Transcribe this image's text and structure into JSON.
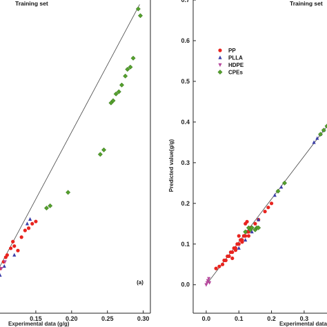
{
  "chart_data": [
    {
      "type": "scatter",
      "title": "Training set",
      "xlabel": "Experimental data (g/g)",
      "ylabel": "",
      "annotation": "(a)",
      "xlim": [
        0.1,
        0.31
      ],
      "ylim": [
        0.0,
        0.7
      ],
      "x_ticks": [
        "0.15",
        "0.20",
        "0.25",
        "0.30"
      ],
      "x_tick_values": [
        0.15,
        0.2,
        0.25,
        0.3
      ],
      "fit_line": [
        [
          0.095,
          0.09
        ],
        [
          0.295,
          0.69
        ]
      ],
      "series": [
        {
          "key": "pp",
          "color": "#e8241f",
          "marker": "circle",
          "x": [
            0.1,
            0.105,
            0.11,
            0.115,
            0.12,
            0.125,
            0.13,
            0.135,
            0.14,
            0.145,
            0.15,
            0.108,
            0.118
          ],
          "y": [
            0.1,
            0.115,
            0.13,
            0.145,
            0.15,
            0.14,
            0.17,
            0.185,
            0.19,
            0.2,
            0.205,
            0.125,
            0.16
          ]
        },
        {
          "key": "plla",
          "color": "#3b3ea8",
          "marker": "triangle-up",
          "x": [
            0.1,
            0.12,
            0.142,
            0.106,
            0.138
          ],
          "y": [
            0.085,
            0.13,
            0.21,
            0.105,
            0.2
          ]
        },
        {
          "key": "hdpe",
          "color": "#b5479c",
          "marker": "triangle-down",
          "x": [
            0.102,
            0.107
          ],
          "y": [
            0.1,
            0.115
          ]
        },
        {
          "key": "cpes",
          "color": "#55a02d",
          "marker": "diamond",
          "x": [
            0.165,
            0.17,
            0.195,
            0.24,
            0.245,
            0.255,
            0.258,
            0.262,
            0.266,
            0.27,
            0.275,
            0.278,
            0.282,
            0.286,
            0.293,
            0.296
          ],
          "y": [
            0.235,
            0.24,
            0.27,
            0.355,
            0.365,
            0.47,
            0.475,
            0.49,
            0.495,
            0.51,
            0.53,
            0.545,
            0.55,
            0.57,
            0.68,
            0.665
          ]
        }
      ]
    },
    {
      "type": "scatter",
      "title": "Training set",
      "xlabel": "Experimental data (g/g)",
      "ylabel": "Predicted value(g/g)",
      "xlim": [
        -0.04,
        0.37
      ],
      "ylim": [
        -0.07,
        0.7
      ],
      "x_ticks": [
        "0.0",
        "0.1",
        "0.2",
        "0.3"
      ],
      "x_tick_values": [
        0.0,
        0.1,
        0.2,
        0.3
      ],
      "y_ticks": [
        "0.0",
        "0.1",
        "0.2",
        "0.3",
        "0.4",
        "0.5",
        "0.6",
        "0.7"
      ],
      "y_tick_values": [
        0.0,
        0.1,
        0.2,
        0.3,
        0.4,
        0.5,
        0.6,
        0.7
      ],
      "legend_position": "top-left",
      "fit_line": [
        [
          0.0,
          0.0
        ],
        [
          0.37,
          0.39
        ]
      ],
      "series": [
        {
          "key": "pp",
          "name": "PP",
          "color": "#e8241f",
          "marker": "circle",
          "x": [
            0.03,
            0.04,
            0.05,
            0.055,
            0.06,
            0.065,
            0.07,
            0.075,
            0.08,
            0.085,
            0.09,
            0.095,
            0.1,
            0.105,
            0.11,
            0.115,
            0.12,
            0.125,
            0.13,
            0.135,
            0.14,
            0.15,
            0.16,
            0.18,
            0.19,
            0.2,
            0.12,
            0.125,
            0.1,
            0.09,
            0.08,
            0.11,
            0.13
          ],
          "y": [
            0.04,
            0.045,
            0.05,
            0.06,
            0.06,
            0.07,
            0.07,
            0.08,
            0.08,
            0.09,
            0.09,
            0.1,
            0.1,
            0.11,
            0.11,
            0.12,
            0.12,
            0.13,
            0.13,
            0.14,
            0.14,
            0.15,
            0.16,
            0.18,
            0.19,
            0.2,
            0.15,
            0.155,
            0.12,
            0.085,
            0.065,
            0.105,
            0.12
          ]
        },
        {
          "key": "plla",
          "name": "PLLA",
          "color": "#3b3ea8",
          "marker": "triangle-up",
          "x": [
            0.1,
            0.12,
            0.14,
            0.16,
            0.21,
            0.23,
            0.33,
            0.34,
            0.35,
            0.36
          ],
          "y": [
            0.09,
            0.11,
            0.13,
            0.16,
            0.22,
            0.24,
            0.35,
            0.36,
            0.37,
            0.38
          ]
        },
        {
          "key": "hdpe",
          "name": "HDPE",
          "color": "#b5479c",
          "marker": "triangle-down",
          "x": [
            0.0,
            0.003,
            0.005,
            0.008,
            0.01
          ],
          "y": [
            0.0,
            0.005,
            0.01,
            0.015,
            0.005
          ]
        },
        {
          "key": "cpes",
          "name": "CPEs",
          "color": "#55a02d",
          "marker": "diamond",
          "x": [
            0.12,
            0.13,
            0.135,
            0.14,
            0.15,
            0.155,
            0.16,
            0.22,
            0.24,
            0.35,
            0.36,
            0.37
          ],
          "y": [
            0.13,
            0.14,
            0.135,
            0.14,
            0.135,
            0.14,
            0.14,
            0.23,
            0.25,
            0.37,
            0.38,
            0.39
          ]
        }
      ]
    }
  ]
}
